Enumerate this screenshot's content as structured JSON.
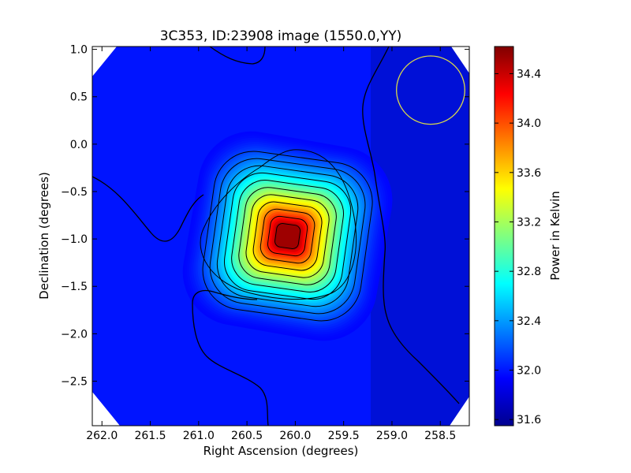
{
  "chart_data": {
    "type": "heatmap",
    "title": "3C353, ID:23908 image (1550.0,YY)",
    "xlabel": "Right Ascension (degrees)",
    "ylabel": "Declination (degrees)",
    "xlim": [
      262.1,
      258.2
    ],
    "ylim": [
      -2.97,
      1.03
    ],
    "x_ticks": [
      262.0,
      261.5,
      261.0,
      260.5,
      260.0,
      259.5,
      259.0,
      258.5
    ],
    "x_tick_labels": [
      "262.0",
      "261.5",
      "261.0",
      "260.5",
      "260.0",
      "259.5",
      "259.0",
      "258.5"
    ],
    "y_ticks": [
      1.0,
      0.5,
      0.0,
      -0.5,
      -1.0,
      -1.5,
      -2.0,
      -2.5
    ],
    "y_tick_labels": [
      "1.0",
      "0.5",
      "0.0",
      "−0.5",
      "−1.0",
      "−1.5",
      "−2.0",
      "−2.5"
    ],
    "colorbar": {
      "label": "Power in Kelvin",
      "range": [
        31.55,
        34.62
      ],
      "ticks": [
        31.6,
        32.0,
        32.4,
        32.8,
        33.2,
        33.6,
        34.0,
        34.4
      ],
      "tick_labels": [
        "31.6",
        "32.0",
        "32.4",
        "32.8",
        "33.2",
        "33.6",
        "34.0",
        "34.4"
      ],
      "colormap": "jet"
    },
    "peak": {
      "ra": 260.08,
      "dec": -0.97,
      "value": 34.62
    },
    "background_level": 31.95,
    "beam_circle": {
      "ra": 258.6,
      "dec": 0.57,
      "radius_deg": 0.36,
      "color": "#d9d94a"
    },
    "contour_color": "#000000"
  }
}
